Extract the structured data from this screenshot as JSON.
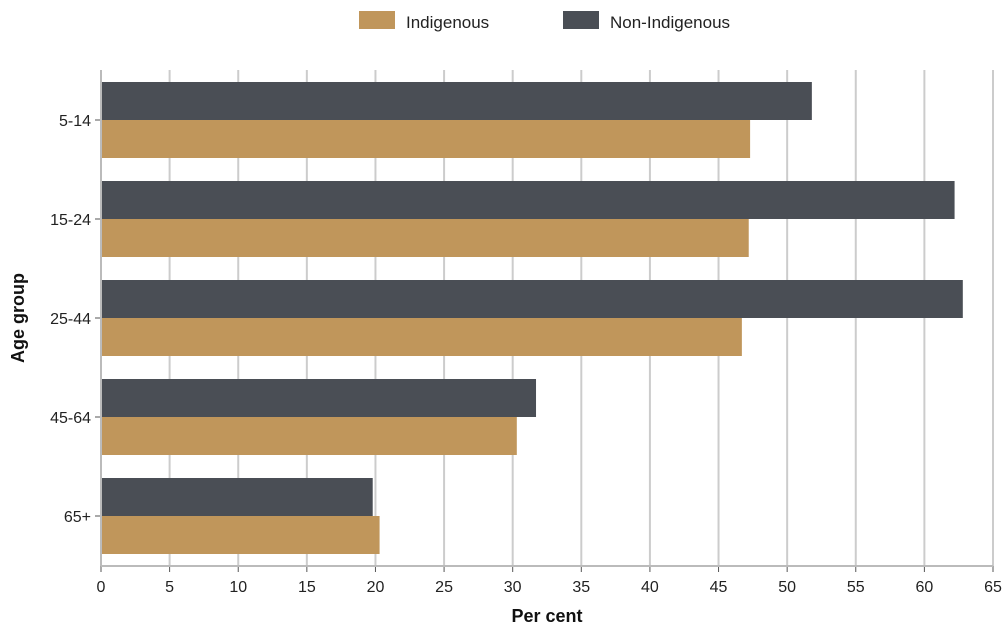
{
  "chart_data": {
    "type": "bar",
    "orientation": "horizontal",
    "categories": [
      "5-14",
      "15-24",
      "25-44",
      "45-64",
      "65+"
    ],
    "series": [
      {
        "name": "Non-Indigenous",
        "color": "#4a4e55",
        "values": [
          51.8,
          62.2,
          62.8,
          31.7,
          19.8
        ]
      },
      {
        "name": "Indigenous",
        "color": "#c0965b",
        "values": [
          47.3,
          47.2,
          46.7,
          30.3,
          20.3
        ]
      }
    ],
    "legend_order": [
      "Indigenous",
      "Non-Indigenous"
    ],
    "legend_position": "top-center",
    "xlabel": "Per cent",
    "ylabel": "Age group",
    "xlim": [
      0,
      65
    ],
    "xticks": [
      0,
      5,
      10,
      15,
      20,
      25,
      30,
      35,
      40,
      45,
      50,
      55,
      60,
      65
    ],
    "grid": "vertical",
    "grid_color": "#cccccc"
  }
}
